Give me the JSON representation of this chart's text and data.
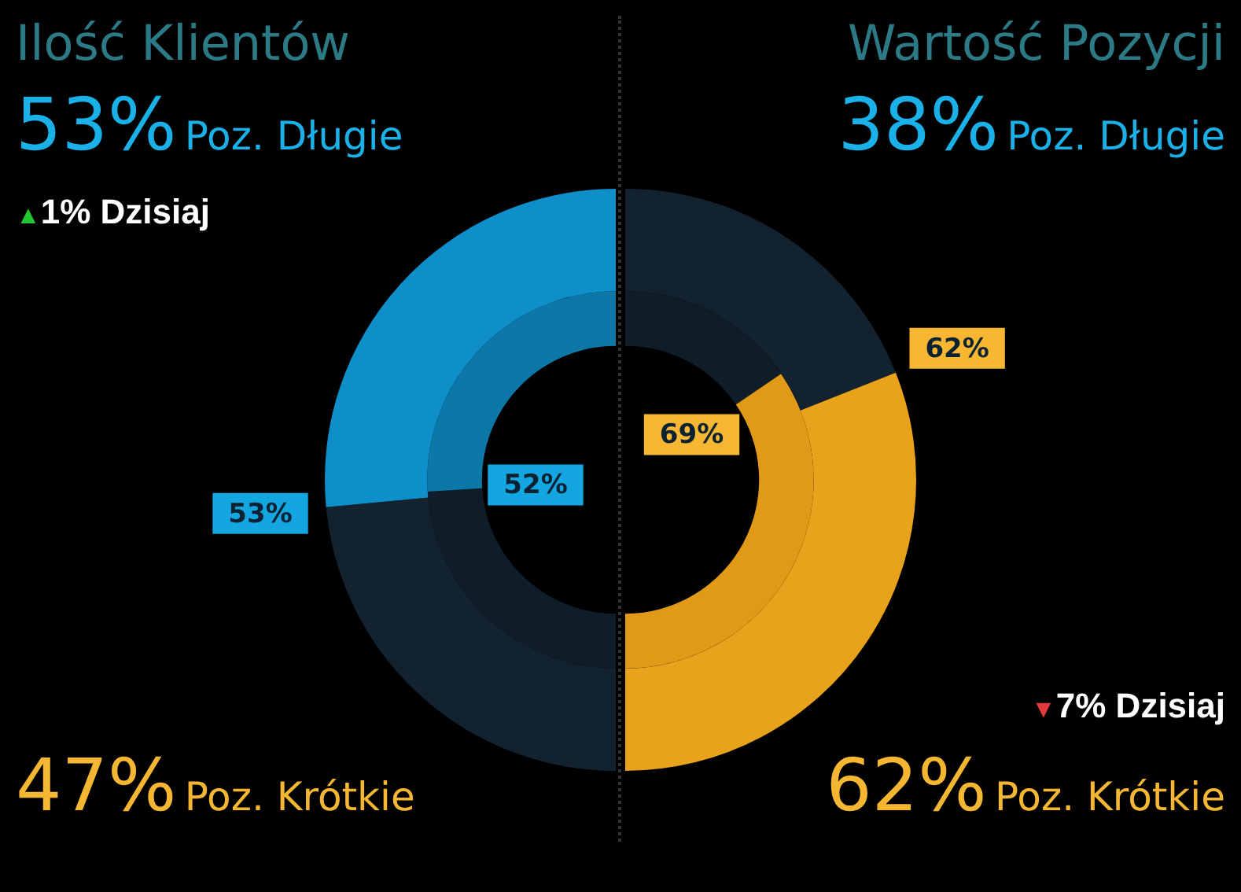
{
  "chart_data": [
    {
      "type": "donut",
      "title": "Ilość Klientów",
      "categories": [
        "Poz. Krótkie",
        "Poz. Długie"
      ],
      "series": [
        {
          "values": [
            47,
            53
          ],
          "colors": [
            "#13222f",
            "#0e8fc9"
          ],
          "value_labels": [
            null,
            "53%"
          ]
        },
        {
          "values": [
            48,
            52
          ],
          "colors": [
            "#0f1d29",
            "#0b78a8"
          ],
          "value_labels": [
            null,
            "52%"
          ]
        }
      ],
      "annotations": [
        "53%",
        "▲1% Dzisiaj",
        "47%"
      ]
    },
    {
      "type": "donut",
      "title": "Wartość Pozycji",
      "categories": [
        "Poz. Długie",
        "Poz. Krótkie"
      ],
      "series": [
        {
          "values": [
            38,
            62
          ],
          "colors": [
            "#13222f",
            "#e8a21c"
          ],
          "value_labels": [
            null,
            "62%"
          ]
        },
        {
          "values": [
            31,
            69
          ],
          "colors": [
            "#0f1d29",
            "#e09a18"
          ],
          "value_labels": [
            null,
            "69%"
          ]
        }
      ],
      "annotations": [
        "38%",
        "▼7% Dzisiaj",
        "62%"
      ]
    }
  ]
}
